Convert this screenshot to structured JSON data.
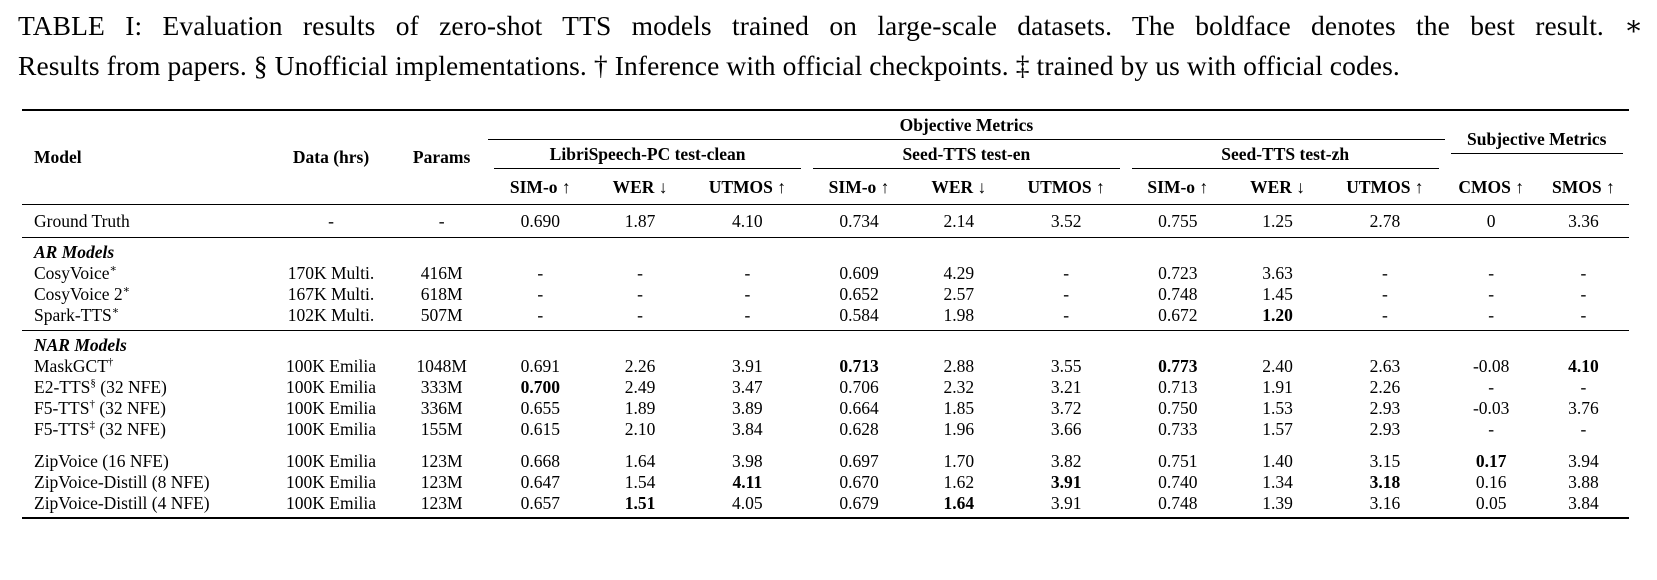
{
  "caption": {
    "line1": "TABLE I: Evaluation results of zero-shot TTS models trained on large-scale datasets. The boldface denotes the best result. ∗",
    "line2": "Results from papers. § Unofficial implementations. † Inference with official checkpoints. ‡ trained by us with official codes."
  },
  "header": {
    "model": "Model",
    "data": "Data (hrs)",
    "params": "Params",
    "objective": "Objective Metrics",
    "subjective": "Subjective Metrics",
    "ls": "LibriSpeech-PC test-clean",
    "seed_en": "Seed-TTS test-en",
    "seed_zh": "Seed-TTS test-zh",
    "sim": "SIM-o ↑",
    "wer": "WER ↓",
    "utmos": "UTMOS ↑",
    "cmos": "CMOS ↑",
    "smos": "SMOS ↑"
  },
  "sections": {
    "ar": "AR Models",
    "nar": "NAR Models"
  },
  "rows": [
    {
      "model": "Ground Truth",
      "sup": "",
      "suffix": "",
      "data": "-",
      "params": "-",
      "v": [
        "0.690",
        "1.87",
        "4.10",
        "0.734",
        "2.14",
        "3.52",
        "0.755",
        "1.25",
        "2.78",
        "0",
        "3.36"
      ],
      "bold": []
    },
    {
      "model": "CosyVoice",
      "sup": "∗",
      "suffix": "",
      "data": "170K Multi.",
      "params": "416M",
      "v": [
        "-",
        "-",
        "-",
        "0.609",
        "4.29",
        "-",
        "0.723",
        "3.63",
        "-",
        "-",
        "-"
      ],
      "bold": []
    },
    {
      "model": "CosyVoice 2",
      "sup": "∗",
      "suffix": "",
      "data": "167K Multi.",
      "params": "618M",
      "v": [
        "-",
        "-",
        "-",
        "0.652",
        "2.57",
        "-",
        "0.748",
        "1.45",
        "-",
        "-",
        "-"
      ],
      "bold": []
    },
    {
      "model": "Spark-TTS",
      "sup": "∗",
      "suffix": "",
      "data": "102K Multi.",
      "params": "507M",
      "v": [
        "-",
        "-",
        "-",
        "0.584",
        "1.98",
        "-",
        "0.672",
        "1.20",
        "-",
        "-",
        "-"
      ],
      "bold": [
        7
      ]
    },
    {
      "model": "MaskGCT",
      "sup": "†",
      "suffix": "",
      "data": "100K Emilia",
      "params": "1048M",
      "v": [
        "0.691",
        "2.26",
        "3.91",
        "0.713",
        "2.88",
        "3.55",
        "0.773",
        "2.40",
        "2.63",
        "-0.08",
        "4.10"
      ],
      "bold": [
        3,
        6,
        10
      ]
    },
    {
      "model": "E2-TTS",
      "sup": "§",
      "suffix": " (32 NFE)",
      "data": "100K Emilia",
      "params": "333M",
      "v": [
        "0.700",
        "2.49",
        "3.47",
        "0.706",
        "2.32",
        "3.21",
        "0.713",
        "1.91",
        "2.26",
        "-",
        "-"
      ],
      "bold": [
        0
      ]
    },
    {
      "model": "F5-TTS",
      "sup": "†",
      "suffix": " (32 NFE)",
      "data": "100K Emilia",
      "params": "336M",
      "v": [
        "0.655",
        "1.89",
        "3.89",
        "0.664",
        "1.85",
        "3.72",
        "0.750",
        "1.53",
        "2.93",
        "-0.03",
        "3.76"
      ],
      "bold": []
    },
    {
      "model": "F5-TTS",
      "sup": "‡",
      "suffix": " (32 NFE)",
      "data": "100K Emilia",
      "params": "155M",
      "v": [
        "0.615",
        "2.10",
        "3.84",
        "0.628",
        "1.96",
        "3.66",
        "0.733",
        "1.57",
        "2.93",
        "-",
        "-"
      ],
      "bold": []
    },
    {
      "model": "ZipVoice (16 NFE)",
      "sup": "",
      "suffix": "",
      "data": "100K Emilia",
      "params": "123M",
      "v": [
        "0.668",
        "1.64",
        "3.98",
        "0.697",
        "1.70",
        "3.82",
        "0.751",
        "1.40",
        "3.15",
        "0.17",
        "3.94"
      ],
      "bold": [
        9
      ]
    },
    {
      "model": "ZipVoice-Distill (8 NFE)",
      "sup": "",
      "suffix": "",
      "data": "100K Emilia",
      "params": "123M",
      "v": [
        "0.647",
        "1.54",
        "4.11",
        "0.670",
        "1.62",
        "3.91",
        "0.740",
        "1.34",
        "3.18",
        "0.16",
        "3.88"
      ],
      "bold": [
        2,
        5,
        8
      ]
    },
    {
      "model": "ZipVoice-Distill (4 NFE)",
      "sup": "",
      "suffix": "",
      "data": "100K Emilia",
      "params": "123M",
      "v": [
        "0.657",
        "1.51",
        "4.05",
        "0.679",
        "1.64",
        "3.91",
        "0.748",
        "1.39",
        "3.16",
        "0.05",
        "3.84"
      ],
      "bold": [
        1,
        4
      ]
    }
  ]
}
